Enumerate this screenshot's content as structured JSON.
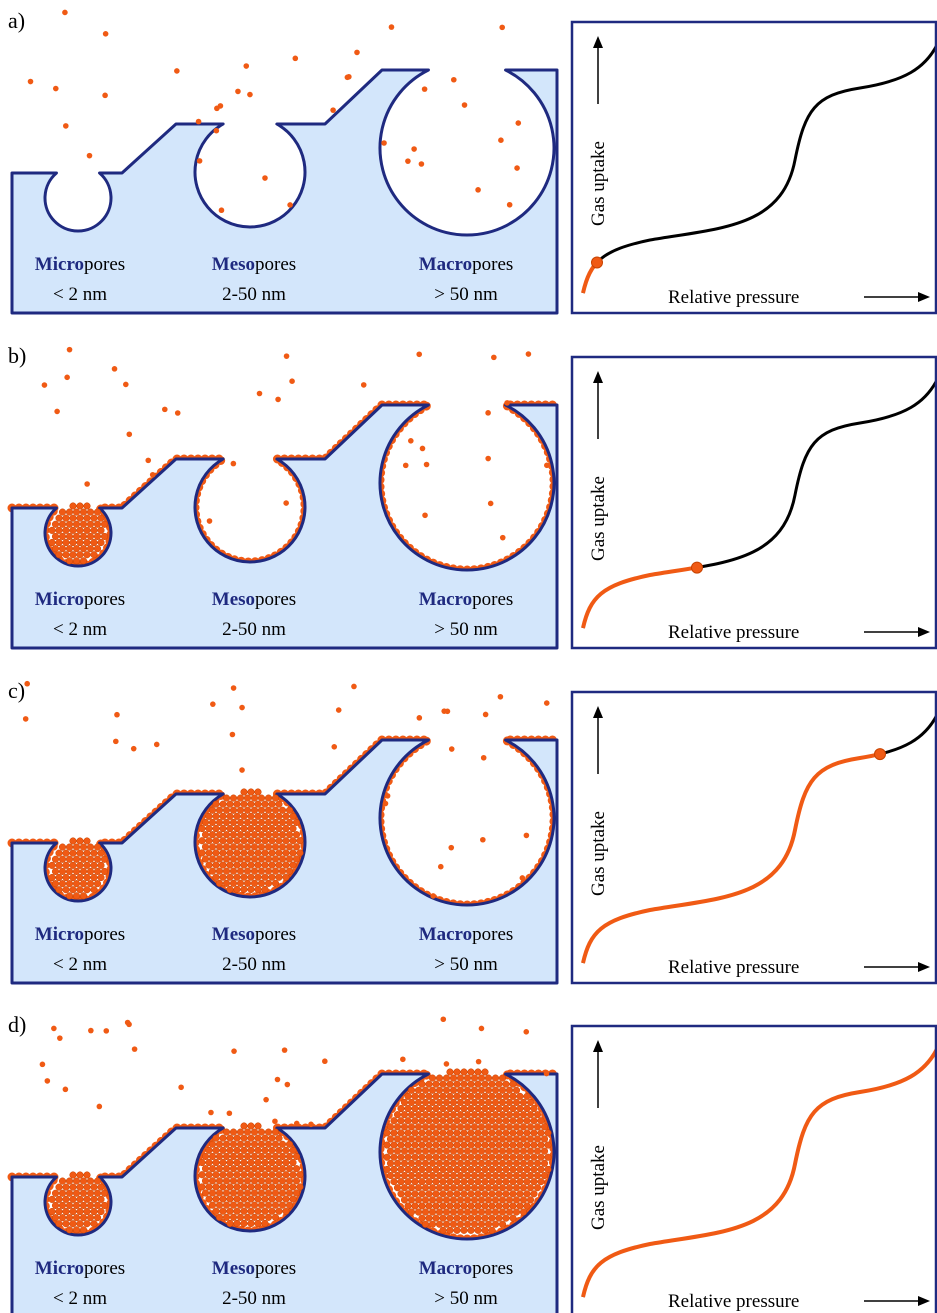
{
  "panels": [
    {
      "label": "a)",
      "pores": [
        {
          "prefix": "Micro",
          "suffix": "pores",
          "size": "< 2 nm"
        },
        {
          "prefix": "Meso",
          "suffix": "pores",
          "size": "2-50 nm"
        },
        {
          "prefix": "Macro",
          "suffix": "pores",
          "size": "> 50 nm"
        }
      ],
      "y_label": "Gas uptake",
      "x_label": "Relative pressure"
    },
    {
      "label": "b)",
      "pores": [
        {
          "prefix": "Micro",
          "suffix": "pores",
          "size": "< 2 nm"
        },
        {
          "prefix": "Meso",
          "suffix": "pores",
          "size": "2-50 nm"
        },
        {
          "prefix": "Macro",
          "suffix": "pores",
          "size": "> 50 nm"
        }
      ],
      "y_label": "Gas uptake",
      "x_label": "Relative pressure"
    },
    {
      "label": "c)",
      "pores": [
        {
          "prefix": "Micro",
          "suffix": "pores",
          "size": "< 2 nm"
        },
        {
          "prefix": "Meso",
          "suffix": "pores",
          "size": "2-50 nm"
        },
        {
          "prefix": "Macro",
          "suffix": "pores",
          "size": "> 50 nm"
        }
      ],
      "y_label": "Gas uptake",
      "x_label": "Relative pressure"
    },
    {
      "label": "d)",
      "pores": [
        {
          "prefix": "Micro",
          "suffix": "pores",
          "size": "< 2 nm"
        },
        {
          "prefix": "Meso",
          "suffix": "pores",
          "size": "2-50 nm"
        },
        {
          "prefix": "Macro",
          "suffix": "pores",
          "size": "> 50 nm"
        }
      ],
      "y_label": "Gas uptake",
      "x_label": "Relative pressure"
    }
  ]
}
